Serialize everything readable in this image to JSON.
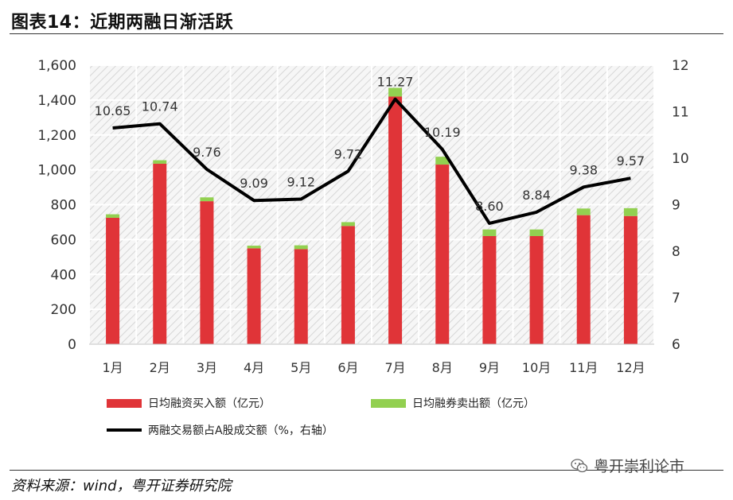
{
  "title": "图表14：近期两融日渐活跃",
  "source": "资料来源：wind，粤开证券研究院",
  "watermark": "粤开崇利论市",
  "watermark_icon": "wechat-icon",
  "colors": {
    "buy": "#e03438",
    "sell": "#92d050",
    "ratio": "#000000"
  },
  "chart_data": {
    "type": "bar",
    "categories": [
      "1月",
      "2月",
      "3月",
      "4月",
      "5月",
      "6月",
      "7月",
      "8月",
      "9月",
      "10月",
      "11月",
      "12月"
    ],
    "series": [
      {
        "name": "日均融资买入额（亿元）",
        "type": "bar",
        "stack": "trade",
        "axis": "left",
        "values": [
          725,
          1035,
          820,
          550,
          545,
          678,
          1420,
          1030,
          620,
          620,
          740,
          735
        ]
      },
      {
        "name": "日均融券卖出额（亿元）",
        "type": "bar",
        "stack": "trade",
        "axis": "left",
        "values": [
          20,
          20,
          22,
          15,
          22,
          22,
          50,
          45,
          38,
          38,
          38,
          45
        ]
      },
      {
        "name": "两融交易额占A股成交额（%，右轴）",
        "type": "line",
        "axis": "right",
        "values": [
          10.65,
          10.74,
          9.76,
          9.09,
          9.12,
          9.72,
          11.27,
          10.19,
          8.6,
          8.84,
          9.38,
          9.57
        ],
        "labels": [
          "10.65",
          "10.74",
          "9.76",
          "9.09",
          "9.12",
          "9.72",
          "11.27",
          "10.19",
          "8.60",
          "8.84",
          "9.38",
          "9.57"
        ]
      }
    ],
    "y_left": {
      "min": 0,
      "max": 1600,
      "step": 200,
      "ticks": [
        "0",
        "200",
        "400",
        "600",
        "800",
        "1,000",
        "1,200",
        "1,400",
        "1,600"
      ]
    },
    "y_right": {
      "min": 6,
      "max": 12,
      "step": 1,
      "ticks": [
        "6",
        "7",
        "8",
        "9",
        "10",
        "11",
        "12"
      ]
    },
    "grid": true,
    "legend": "bottom"
  }
}
